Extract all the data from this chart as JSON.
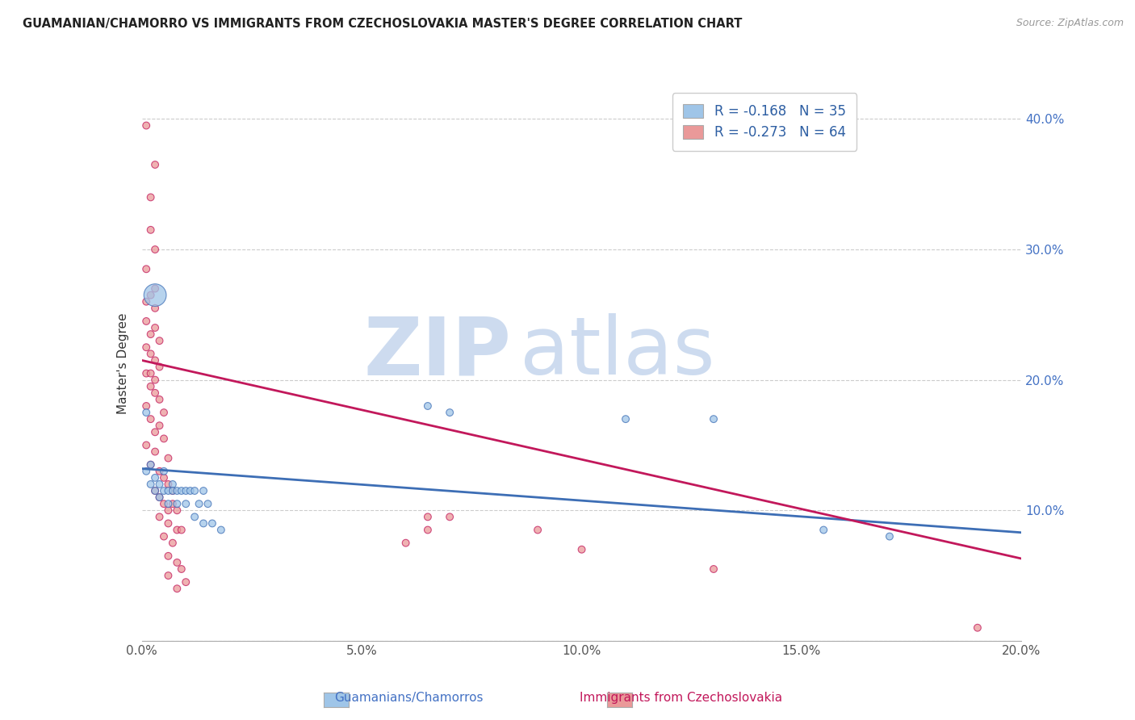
{
  "title": "GUAMANIAN/CHAMORRO VS IMMIGRANTS FROM CZECHOSLOVAKIA MASTER'S DEGREE CORRELATION CHART",
  "source": "Source: ZipAtlas.com",
  "ylabel": "Master's Degree",
  "yticks": [
    0.0,
    0.1,
    0.2,
    0.3,
    0.4
  ],
  "ytick_labels": [
    "",
    "10.0%",
    "20.0%",
    "30.0%",
    "40.0%"
  ],
  "xlim": [
    0.0,
    0.2
  ],
  "ylim": [
    0.0,
    0.425
  ],
  "legend_blue_label": "R = -0.168   N = 35",
  "legend_pink_label": "R = -0.273   N = 64",
  "blue_color": "#9fc5e8",
  "pink_color": "#ea9999",
  "blue_line_color": "#3d6eb5",
  "pink_line_color": "#c2185b",
  "blue_scatter": [
    [
      0.001,
      0.13
    ],
    [
      0.002,
      0.135
    ],
    [
      0.002,
      0.12
    ],
    [
      0.003,
      0.125
    ],
    [
      0.003,
      0.115
    ],
    [
      0.004,
      0.12
    ],
    [
      0.004,
      0.11
    ],
    [
      0.005,
      0.13
    ],
    [
      0.005,
      0.115
    ],
    [
      0.006,
      0.115
    ],
    [
      0.006,
      0.105
    ],
    [
      0.007,
      0.12
    ],
    [
      0.007,
      0.115
    ],
    [
      0.008,
      0.115
    ],
    [
      0.008,
      0.105
    ],
    [
      0.009,
      0.115
    ],
    [
      0.01,
      0.115
    ],
    [
      0.01,
      0.105
    ],
    [
      0.011,
      0.115
    ],
    [
      0.012,
      0.115
    ],
    [
      0.012,
      0.095
    ],
    [
      0.013,
      0.105
    ],
    [
      0.014,
      0.115
    ],
    [
      0.014,
      0.09
    ],
    [
      0.015,
      0.105
    ],
    [
      0.016,
      0.09
    ],
    [
      0.018,
      0.085
    ],
    [
      0.001,
      0.175
    ],
    [
      0.003,
      0.265
    ],
    [
      0.065,
      0.18
    ],
    [
      0.07,
      0.175
    ],
    [
      0.11,
      0.17
    ],
    [
      0.13,
      0.17
    ],
    [
      0.155,
      0.085
    ],
    [
      0.17,
      0.08
    ]
  ],
  "blue_sizes_data": [
    40,
    40,
    40,
    40,
    40,
    40,
    40,
    40,
    40,
    40,
    40,
    40,
    40,
    40,
    40,
    40,
    40,
    40,
    40,
    40,
    40,
    40,
    40,
    40,
    40,
    40,
    40,
    40,
    400,
    40,
    40,
    40,
    40,
    40,
    40
  ],
  "pink_scatter": [
    [
      0.001,
      0.395
    ],
    [
      0.003,
      0.365
    ],
    [
      0.002,
      0.34
    ],
    [
      0.002,
      0.315
    ],
    [
      0.003,
      0.3
    ],
    [
      0.001,
      0.285
    ],
    [
      0.003,
      0.27
    ],
    [
      0.002,
      0.265
    ],
    [
      0.001,
      0.26
    ],
    [
      0.003,
      0.255
    ],
    [
      0.001,
      0.245
    ],
    [
      0.003,
      0.24
    ],
    [
      0.002,
      0.235
    ],
    [
      0.004,
      0.23
    ],
    [
      0.001,
      0.225
    ],
    [
      0.002,
      0.22
    ],
    [
      0.003,
      0.215
    ],
    [
      0.004,
      0.21
    ],
    [
      0.001,
      0.205
    ],
    [
      0.002,
      0.205
    ],
    [
      0.003,
      0.2
    ],
    [
      0.002,
      0.195
    ],
    [
      0.003,
      0.19
    ],
    [
      0.004,
      0.185
    ],
    [
      0.001,
      0.18
    ],
    [
      0.005,
      0.175
    ],
    [
      0.002,
      0.17
    ],
    [
      0.004,
      0.165
    ],
    [
      0.003,
      0.16
    ],
    [
      0.005,
      0.155
    ],
    [
      0.001,
      0.15
    ],
    [
      0.003,
      0.145
    ],
    [
      0.006,
      0.14
    ],
    [
      0.002,
      0.135
    ],
    [
      0.004,
      0.13
    ],
    [
      0.005,
      0.125
    ],
    [
      0.006,
      0.12
    ],
    [
      0.003,
      0.115
    ],
    [
      0.007,
      0.115
    ],
    [
      0.004,
      0.11
    ],
    [
      0.005,
      0.105
    ],
    [
      0.006,
      0.1
    ],
    [
      0.007,
      0.105
    ],
    [
      0.008,
      0.1
    ],
    [
      0.004,
      0.095
    ],
    [
      0.006,
      0.09
    ],
    [
      0.008,
      0.085
    ],
    [
      0.009,
      0.085
    ],
    [
      0.005,
      0.08
    ],
    [
      0.007,
      0.075
    ],
    [
      0.006,
      0.065
    ],
    [
      0.008,
      0.06
    ],
    [
      0.009,
      0.055
    ],
    [
      0.006,
      0.05
    ],
    [
      0.01,
      0.045
    ],
    [
      0.008,
      0.04
    ],
    [
      0.06,
      0.075
    ],
    [
      0.065,
      0.095
    ],
    [
      0.07,
      0.095
    ],
    [
      0.065,
      0.085
    ],
    [
      0.09,
      0.085
    ],
    [
      0.1,
      0.07
    ],
    [
      0.13,
      0.055
    ],
    [
      0.19,
      0.01
    ]
  ],
  "pink_sizes_data": [
    40,
    40,
    40,
    40,
    40,
    40,
    40,
    40,
    40,
    40,
    40,
    40,
    40,
    40,
    40,
    40,
    40,
    40,
    40,
    40,
    40,
    40,
    40,
    40,
    40,
    40,
    40,
    40,
    40,
    40,
    40,
    40,
    40,
    40,
    40,
    40,
    40,
    40,
    40,
    40,
    40,
    40,
    40,
    40,
    40,
    40,
    40,
    40,
    40,
    40,
    40,
    40,
    40,
    40,
    40,
    40,
    40,
    40,
    40,
    40,
    40,
    40,
    40,
    40
  ],
  "blue_line": [
    [
      0.0,
      0.132
    ],
    [
      0.2,
      0.083
    ]
  ],
  "pink_line": [
    [
      0.0,
      0.215
    ],
    [
      0.2,
      0.063
    ]
  ],
  "watermark_zip": "ZIP",
  "watermark_atlas": "atlas",
  "background_color": "#ffffff",
  "grid_color": "#cccccc"
}
